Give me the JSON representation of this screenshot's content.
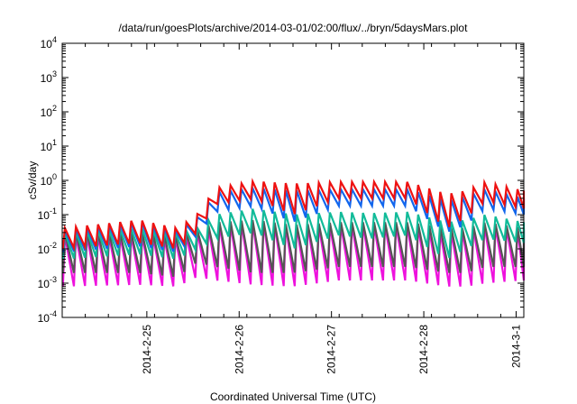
{
  "chart_data": {
    "type": "line",
    "title": "/data/run/goesPlots/archive/2014-03-01/02:00/flux/../bryn/5daysMars.plot",
    "xlabel": "Coordinated Universal Time (UTC)",
    "ylabel": "cSv/day",
    "yscale": "log",
    "ylim": [
      0.0001,
      10000
    ],
    "xlim": [
      "2014-02-24 02:00",
      "2014-03-01 02:00"
    ],
    "grid": false,
    "legend": "none",
    "x_ticks": [
      "2014-2-25",
      "2014-2-26",
      "2014-2-27",
      "2014-2-28",
      "2014-3-1"
    ],
    "y_ticks": [
      {
        "base": "10",
        "exp": "-4"
      },
      {
        "base": "10",
        "exp": "-3"
      },
      {
        "base": "10",
        "exp": "-2"
      },
      {
        "base": "10",
        "exp": "-1"
      },
      {
        "base": "10",
        "exp": "0"
      },
      {
        "base": "10",
        "exp": "1"
      },
      {
        "base": "10",
        "exp": "2"
      },
      {
        "base": "10",
        "exp": "3"
      },
      {
        "base": "10",
        "exp": "4"
      }
    ],
    "series_style": {
      "period_hours": 2.87,
      "phase_hours": 0.7,
      "note_pattern": "sawtooth"
    },
    "series": [
      {
        "color": "#ee1111",
        "envelope": {
          "t_hours": [
            0,
            20,
            30,
            35,
            40,
            50,
            60,
            72,
            80,
            90,
            100,
            105,
            110,
            120
          ],
          "peak": [
            0.04,
            0.07,
            0.04,
            0.1,
            0.6,
            0.95,
            0.8,
            0.9,
            0.9,
            0.9,
            0.4,
            0.5,
            0.9,
            0.5
          ],
          "trough": [
            0.01,
            0.015,
            0.01,
            0.03,
            0.2,
            0.3,
            0.1,
            0.3,
            0.3,
            0.3,
            0.04,
            0.08,
            0.25,
            0.15
          ]
        }
      },
      {
        "color": "#1166ee",
        "envelope": {
          "t_hours": [
            0,
            20,
            30,
            35,
            40,
            50,
            60,
            72,
            80,
            90,
            100,
            105,
            110,
            120
          ],
          "peak": [
            0.035,
            0.06,
            0.035,
            0.08,
            0.45,
            0.6,
            0.5,
            0.55,
            0.55,
            0.55,
            0.25,
            0.35,
            0.55,
            0.3
          ],
          "trough": [
            0.008,
            0.012,
            0.008,
            0.025,
            0.12,
            0.18,
            0.06,
            0.18,
            0.18,
            0.18,
            0.03,
            0.05,
            0.15,
            0.1
          ]
        }
      },
      {
        "color": "#11bb99",
        "envelope": {
          "t_hours": [
            0,
            20,
            30,
            35,
            40,
            50,
            60,
            72,
            80,
            90,
            100,
            105,
            110,
            120
          ],
          "peak": [
            0.03,
            0.04,
            0.03,
            0.04,
            0.1,
            0.15,
            0.1,
            0.12,
            0.11,
            0.12,
            0.06,
            0.07,
            0.1,
            0.06
          ],
          "trough": [
            0.005,
            0.007,
            0.005,
            0.01,
            0.02,
            0.03,
            0.01,
            0.025,
            0.02,
            0.025,
            0.005,
            0.01,
            0.02,
            0.015
          ]
        }
      },
      {
        "color": "#555555",
        "envelope": {
          "t_hours": [
            0,
            20,
            30,
            35,
            40,
            50,
            60,
            72,
            80,
            90,
            100,
            105,
            110,
            120
          ],
          "peak": [
            0.03,
            0.03,
            0.025,
            0.035,
            0.06,
            0.07,
            0.05,
            0.06,
            0.06,
            0.06,
            0.04,
            0.04,
            0.06,
            0.04
          ],
          "trough": [
            0.002,
            0.002,
            0.0015,
            0.004,
            0.003,
            0.002,
            0.002,
            0.003,
            0.003,
            0.003,
            0.002,
            0.002,
            0.003,
            0.003
          ]
        }
      },
      {
        "color": "#ee11dd",
        "envelope": {
          "t_hours": [
            0,
            20,
            30,
            35,
            40,
            50,
            60,
            72,
            80,
            90,
            100,
            105,
            110,
            120
          ],
          "peak": [
            0.025,
            0.025,
            0.02,
            0.03,
            0.05,
            0.06,
            0.045,
            0.05,
            0.05,
            0.05,
            0.03,
            0.035,
            0.05,
            0.035
          ],
          "trough": [
            0.0008,
            0.0009,
            0.0008,
            0.0015,
            0.0012,
            0.0009,
            0.0008,
            0.0012,
            0.0012,
            0.0012,
            0.0008,
            0.0008,
            0.001,
            0.0012
          ]
        }
      }
    ]
  }
}
